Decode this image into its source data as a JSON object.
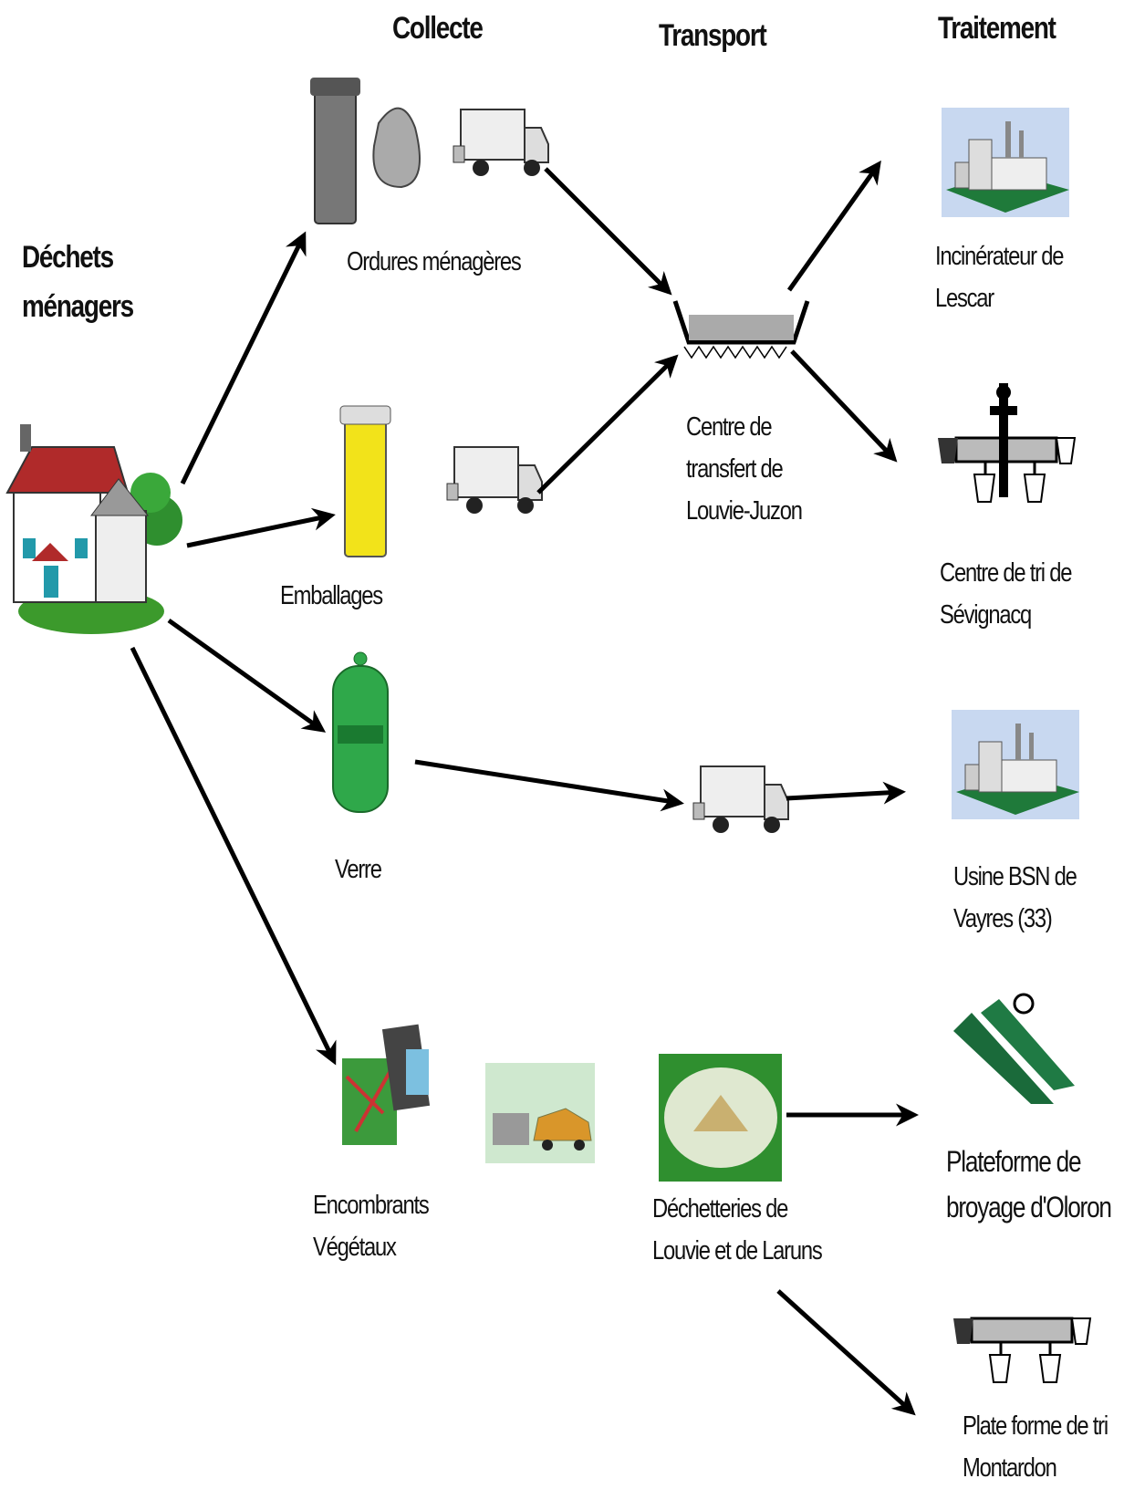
{
  "headers": {
    "collecte": "Collecte",
    "transport": "Transport",
    "traitement": "Traitement"
  },
  "source": {
    "lines": [
      "Déchets",
      "ménagers"
    ]
  },
  "collecte": [
    {
      "lines": [
        "Ordures ménagères"
      ]
    },
    {
      "lines": [
        "Emballages"
      ]
    },
    {
      "lines": [
        "Verre"
      ]
    },
    {
      "lines": [
        "Encombrants",
        "Végétaux"
      ]
    }
  ],
  "transport": [
    {
      "lines": [
        "Centre de",
        "transfert de",
        "Louvie-Juzon"
      ]
    },
    {
      "lines": [
        "Déchetteries de",
        "Louvie et de Laruns"
      ]
    }
  ],
  "traitement": [
    {
      "lines": [
        "Incinérateur de",
        "Lescar"
      ]
    },
    {
      "lines": [
        "Centre de tri de",
        "Sévignacq"
      ]
    },
    {
      "lines": [
        "Usine BSN de",
        "Vayres (33)"
      ]
    },
    {
      "lines": [
        "Plateforme de",
        "broyage d'Oloron"
      ]
    },
    {
      "lines": [
        "Plate forme de tri",
        "Montardon"
      ]
    }
  ]
}
